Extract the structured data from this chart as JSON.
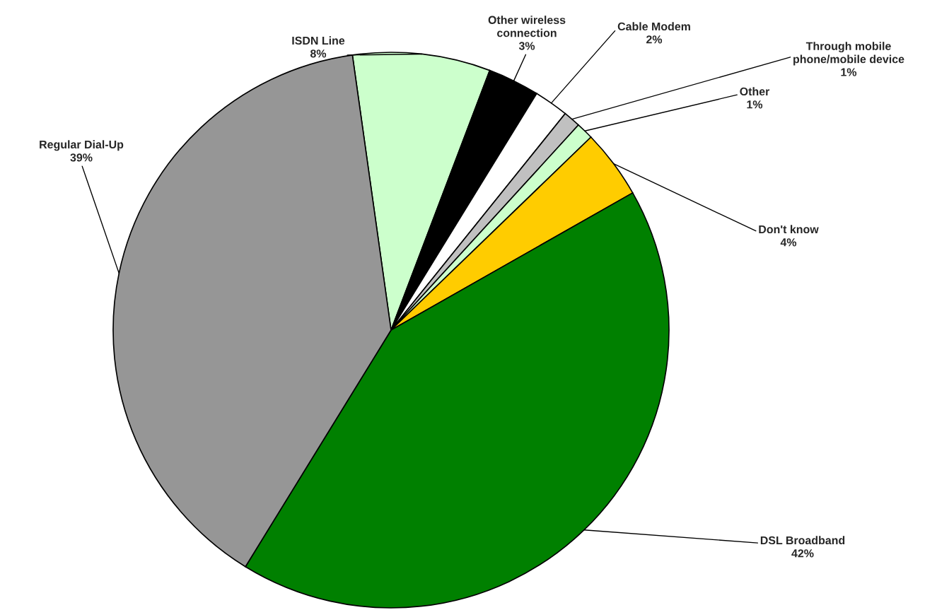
{
  "chart_data": {
    "type": "pie",
    "categories": [
      "ISDN Line",
      "Other wireless connection",
      "Cable Modem",
      "Through mobile phone/mobile device",
      "Other",
      "Don't know",
      "DSL Broadband",
      "Regular Dial-Up"
    ],
    "values": [
      8,
      3,
      2,
      1,
      1,
      4,
      42,
      39
    ],
    "colors": [
      "#ccffcc",
      "#000000",
      "#ffffff",
      "#c0c0c0",
      "#ccffcc",
      "#ffcc00",
      "#008000",
      "#969696"
    ],
    "value_labels": [
      "8%",
      "3%",
      "2%",
      "1%",
      "1%",
      "4%",
      "42%",
      "39%"
    ],
    "legend": false
  }
}
